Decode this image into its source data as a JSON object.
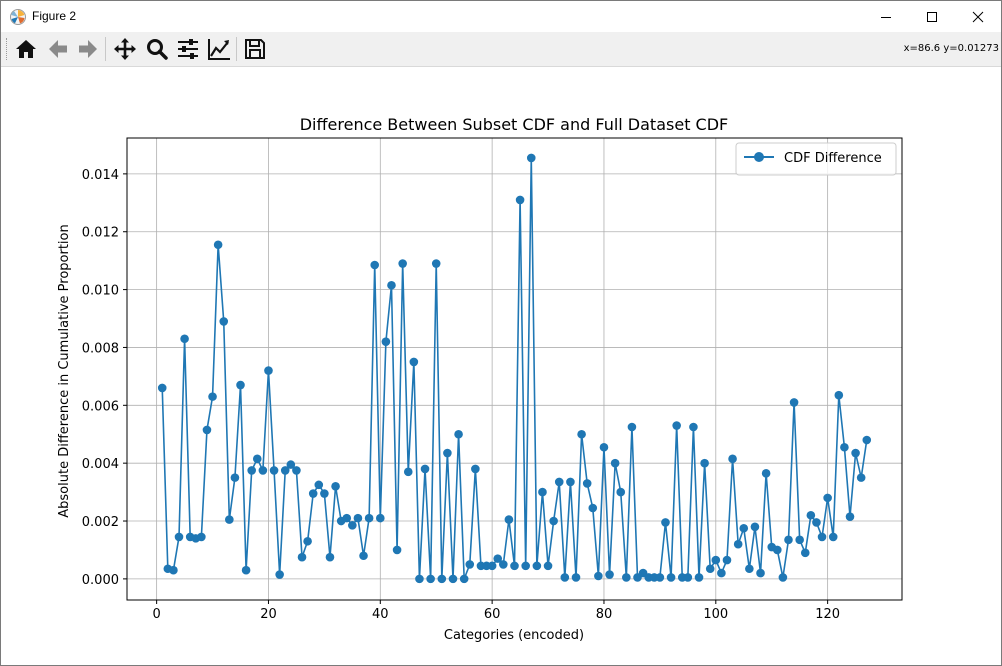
{
  "window": {
    "title": "Figure 2",
    "controls": {
      "minimize": "minimize",
      "maximize": "maximize",
      "close": "close"
    }
  },
  "toolbar": {
    "buttons": [
      {
        "name": "home",
        "icon": "home-icon"
      },
      {
        "name": "back",
        "icon": "arrow-left-icon"
      },
      {
        "name": "forward",
        "icon": "arrow-right-icon"
      },
      {
        "name": "pan",
        "icon": "move-icon"
      },
      {
        "name": "zoom",
        "icon": "magnifier-icon"
      },
      {
        "name": "configure-subplots",
        "icon": "sliders-icon"
      },
      {
        "name": "edit-axis",
        "icon": "line-chart-icon"
      },
      {
        "name": "save",
        "icon": "floppy-disk-icon"
      }
    ],
    "coords": "x=86.6 y=0.01273"
  },
  "colors": {
    "series": "#1f77b4",
    "grid": "#b0b0b0"
  },
  "chart_data": {
    "type": "line",
    "title": "Difference Between Subset CDF and Full Dataset CDF",
    "xlabel": "Categories (encoded)",
    "ylabel": "Absolute Difference in Cumulative Proportion",
    "xlim": [
      -5.3,
      133.3
    ],
    "ylim": [
      -0.00073,
      0.01524
    ],
    "xticks": [
      0,
      20,
      40,
      60,
      80,
      100,
      120
    ],
    "yticks": [
      0.0,
      0.002,
      0.004,
      0.006,
      0.008,
      0.01,
      0.012,
      0.014
    ],
    "ytick_labels": [
      "0.000",
      "0.002",
      "0.004",
      "0.006",
      "0.008",
      "0.010",
      "0.012",
      "0.014"
    ],
    "grid": true,
    "legend_position": "top-right",
    "series": [
      {
        "name": "CDF Difference",
        "marker": "circle",
        "x": [
          1,
          2,
          3,
          4,
          5,
          6,
          7,
          8,
          9,
          10,
          11,
          12,
          13,
          14,
          15,
          16,
          17,
          18,
          19,
          20,
          21,
          22,
          23,
          24,
          25,
          26,
          27,
          28,
          29,
          30,
          31,
          32,
          33,
          34,
          35,
          36,
          37,
          38,
          39,
          40,
          41,
          42,
          43,
          44,
          45,
          46,
          47,
          48,
          49,
          50,
          51,
          52,
          53,
          54,
          55,
          56,
          57,
          58,
          59,
          60,
          61,
          62,
          63,
          64,
          65,
          66,
          67,
          68,
          69,
          70,
          71,
          72,
          73,
          74,
          75,
          76,
          77,
          78,
          79,
          80,
          81,
          82,
          83,
          84,
          85,
          86,
          87,
          88,
          89,
          90,
          91,
          92,
          93,
          94,
          95,
          96,
          97,
          98,
          99,
          100,
          101,
          102,
          103,
          104,
          105,
          106,
          107,
          108,
          109,
          110,
          111,
          112,
          113,
          114,
          115,
          116,
          117,
          118,
          119,
          120,
          121,
          122,
          123,
          124,
          125,
          126,
          127
        ],
        "values": [
          0.0066,
          0.00035,
          0.0003,
          0.00145,
          0.0083,
          0.00145,
          0.0014,
          0.00145,
          0.00515,
          0.0063,
          0.01155,
          0.0089,
          0.00205,
          0.0035,
          0.0067,
          0.0003,
          0.00375,
          0.00415,
          0.00375,
          0.0072,
          0.00375,
          0.00015,
          0.00375,
          0.00395,
          0.00375,
          0.00075,
          0.0013,
          0.00295,
          0.00325,
          0.00295,
          0.00075,
          0.0032,
          0.002,
          0.0021,
          0.00185,
          0.0021,
          0.0008,
          0.0021,
          0.01085,
          0.0021,
          0.0082,
          0.01015,
          0.001,
          0.0109,
          0.0037,
          0.0075,
          0.0,
          0.0038,
          0.0,
          0.0109,
          0.0,
          0.00435,
          0.0,
          0.005,
          0.0,
          0.0005,
          0.0038,
          0.00045,
          0.00045,
          0.00045,
          0.0007,
          0.0005,
          0.00205,
          0.00045,
          0.0131,
          0.00045,
          0.01455,
          0.00045,
          0.003,
          0.00045,
          0.002,
          0.00335,
          5e-05,
          0.00335,
          5e-05,
          0.005,
          0.0033,
          0.00245,
          0.0001,
          0.00455,
          0.00015,
          0.004,
          0.003,
          5e-05,
          0.00525,
          5e-05,
          0.0002,
          5e-05,
          5e-05,
          5e-05,
          0.00195,
          5e-05,
          0.0053,
          5e-05,
          5e-05,
          0.00525,
          5e-05,
          0.004,
          0.00035,
          0.00065,
          0.0002,
          0.00065,
          0.00415,
          0.0012,
          0.00175,
          0.00035,
          0.0018,
          0.0002,
          0.00365,
          0.0011,
          0.001,
          5e-05,
          0.00135,
          0.0061,
          0.00135,
          0.0009,
          0.0022,
          0.00195,
          0.00145,
          0.0028,
          0.00145,
          0.00635,
          0.00455,
          0.00215,
          0.00435,
          0.0035,
          0.0048
        ]
      }
    ]
  }
}
